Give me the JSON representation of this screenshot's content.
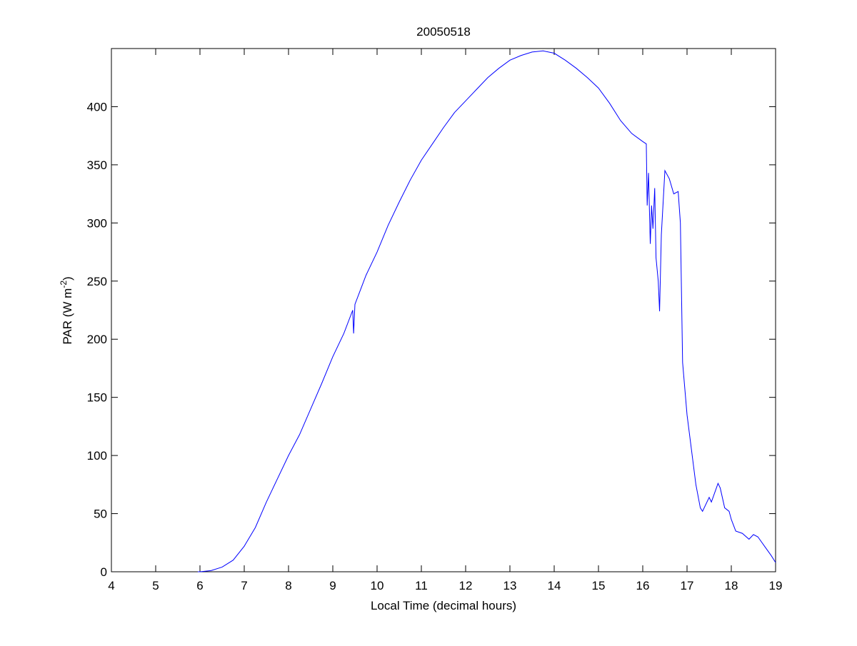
{
  "chart_data": {
    "type": "line",
    "title": "20050518",
    "x_label": "Local Time (decimal hours)",
    "y_label": {
      "text": "PAR (W m",
      "superscript": "-2",
      "suffix": ")"
    },
    "xlim": [
      4,
      19
    ],
    "xticks": [
      4,
      5,
      6,
      7,
      8,
      9,
      10,
      11,
      12,
      13,
      14,
      15,
      16,
      17,
      18,
      19
    ],
    "ylim": [
      0,
      450
    ],
    "yticks": [
      0,
      50,
      100,
      150,
      200,
      250,
      300,
      350,
      400
    ],
    "series": [
      {
        "color": "#0000ff",
        "x": [
          5.95,
          6.0,
          6.25,
          6.5,
          6.75,
          7.0,
          7.25,
          7.5,
          7.75,
          8.0,
          8.25,
          8.5,
          8.75,
          9.0,
          9.25,
          9.45,
          9.47,
          9.5,
          9.75,
          10.0,
          10.25,
          10.5,
          10.75,
          11.0,
          11.25,
          11.5,
          11.75,
          12.0,
          12.25,
          12.5,
          12.75,
          13.0,
          13.25,
          13.5,
          13.75,
          14.0,
          14.25,
          14.5,
          14.75,
          15.0,
          15.25,
          15.5,
          15.75,
          16.0,
          16.08,
          16.1,
          16.13,
          16.17,
          16.2,
          16.23,
          16.27,
          16.3,
          16.35,
          16.38,
          16.42,
          16.5,
          16.6,
          16.7,
          16.8,
          16.85,
          16.9,
          17.0,
          17.1,
          17.2,
          17.3,
          17.35,
          17.5,
          17.55,
          17.7,
          17.75,
          17.85,
          17.95,
          18.0,
          18.1,
          18.25,
          18.4,
          18.5,
          18.6,
          18.75,
          18.9,
          19.0
        ],
        "values": [
          0,
          0,
          1,
          4,
          10,
          22,
          38,
          60,
          80,
          100,
          118,
          140,
          162,
          185,
          205,
          225,
          205,
          230,
          255,
          275,
          298,
          318,
          337,
          354,
          368,
          382,
          395,
          405,
          415,
          425,
          433,
          440,
          444,
          447,
          448,
          446,
          440,
          433,
          425,
          416,
          403,
          388,
          377,
          370,
          368,
          315,
          343,
          282,
          315,
          295,
          330,
          270,
          250,
          224,
          290,
          345,
          338,
          325,
          327,
          300,
          180,
          135,
          105,
          75,
          55,
          52,
          64,
          60,
          76,
          72,
          55,
          52,
          45,
          35,
          33,
          28,
          32,
          30,
          22,
          14,
          8
        ]
      }
    ]
  }
}
